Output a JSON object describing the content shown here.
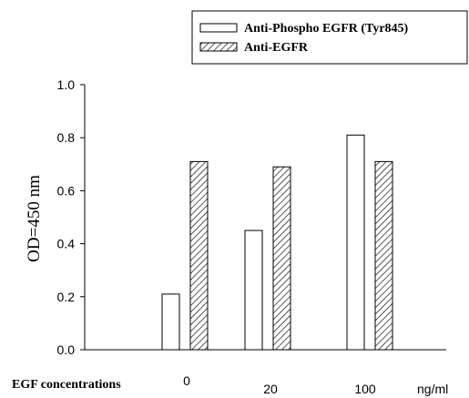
{
  "chart_data": {
    "type": "bar",
    "categories": [
      "0",
      "20",
      "100"
    ],
    "series": [
      {
        "name": "Anti-Phospho EGFR (Tyr845)",
        "values": [
          0.21,
          0.45,
          0.81
        ],
        "pattern": "open"
      },
      {
        "name": "Anti-EGFR",
        "values": [
          0.71,
          0.69,
          0.71
        ],
        "pattern": "hatched"
      }
    ],
    "title": "",
    "xlabel": "EGF concentrations",
    "x_unit": "ng/ml",
    "ylabel": "OD=450 nm",
    "ylim": [
      0,
      1.0
    ],
    "yticks": [
      "0.0",
      "0.2",
      "0.4",
      "0.6",
      "0.8",
      "1.0"
    ],
    "grid": false,
    "legend_position": "top-right",
    "colors": {
      "bar_fill": "#ffffff",
      "stroke": "#000000",
      "background": "#ffffff"
    }
  }
}
